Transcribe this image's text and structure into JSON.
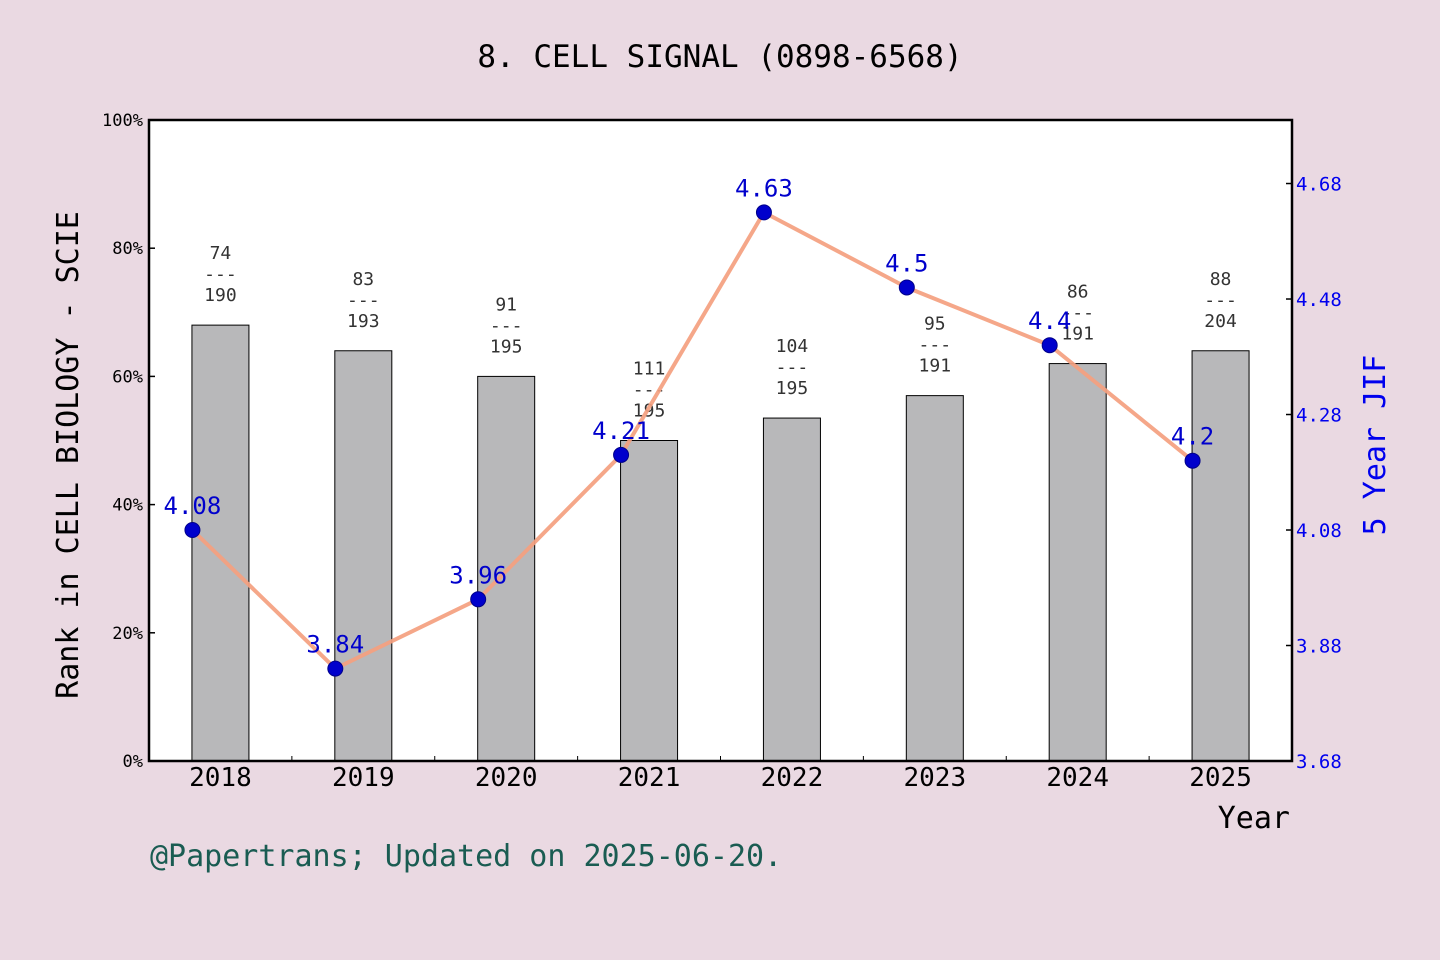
{
  "chart_data": {
    "type": "bar+line",
    "title": "8. CELL SIGNAL (0898-6568)",
    "xlabel": "Year",
    "ylabel_left": "Rank in CELL BIOLOGY - SCIE",
    "ylabel_right": "5 Year JIF",
    "categories": [
      "2018",
      "2019",
      "2020",
      "2021",
      "2022",
      "2023",
      "2024",
      "2025"
    ],
    "left_axis": {
      "ylim": [
        0,
        100
      ],
      "ticks": [
        "0%",
        "20%",
        "40%",
        "60%",
        "80%",
        "100%"
      ],
      "tick_values": [
        0,
        20,
        40,
        60,
        80,
        100
      ]
    },
    "right_axis": {
      "ylim": [
        3.68,
        4.79
      ],
      "ticks": [
        "3.68",
        "3.88",
        "4.08",
        "4.28",
        "4.48",
        "4.68"
      ],
      "tick_values": [
        3.68,
        3.88,
        4.08,
        4.28,
        4.48,
        4.68
      ]
    },
    "bars": {
      "values": [
        68,
        64,
        60,
        50,
        53.5,
        57,
        62,
        64
      ],
      "rank": [
        "74",
        "83",
        "91",
        "111",
        "104",
        "95",
        "86",
        "88"
      ],
      "total": [
        "190",
        "193",
        "195",
        "195",
        "195",
        "191",
        "191",
        "204"
      ],
      "separator": "---",
      "color": "#b8b8ba"
    },
    "line": {
      "values": [
        4.08,
        3.84,
        3.96,
        4.21,
        4.63,
        4.5,
        4.4,
        4.2
      ],
      "labels": [
        "4.08",
        "3.84",
        "3.96",
        "4.21",
        "4.63",
        "4.5",
        "4.4",
        "4.2"
      ],
      "line_color": "#f4a07f",
      "marker_color": "#0000cc"
    },
    "grid": false,
    "footer": "@Papertrans; Updated on 2025-06-20."
  }
}
